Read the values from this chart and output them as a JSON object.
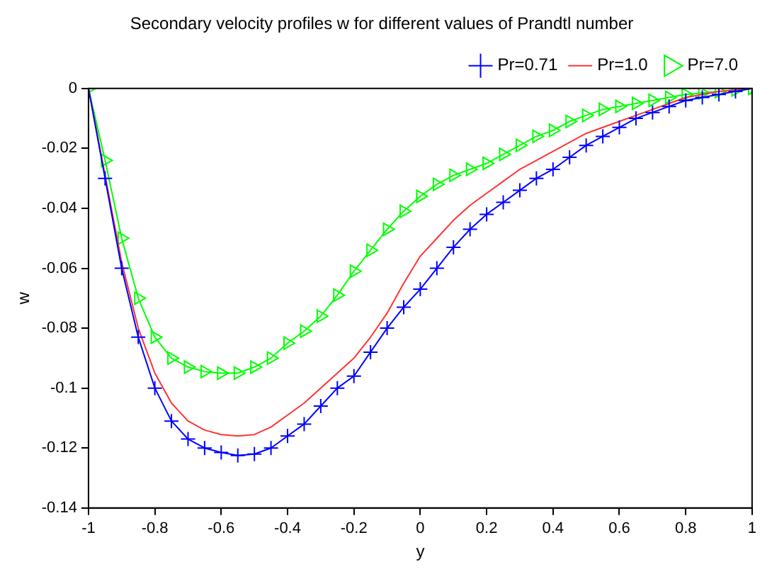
{
  "chart_data": {
    "type": "line",
    "title": "Secondary velocity profiles w for different values of Prandtl number",
    "xlabel": "y",
    "ylabel": "w",
    "x": [
      -1,
      -0.95,
      -0.9,
      -0.85,
      -0.8,
      -0.75,
      -0.7,
      -0.65,
      -0.6,
      -0.55,
      -0.5,
      -0.45,
      -0.4,
      -0.35,
      -0.3,
      -0.25,
      -0.2,
      -0.15,
      -0.1,
      -0.05,
      0,
      0.05,
      0.1,
      0.15,
      0.2,
      0.25,
      0.3,
      0.35,
      0.4,
      0.45,
      0.5,
      0.55,
      0.6,
      0.65,
      0.7,
      0.75,
      0.8,
      0.85,
      0.9,
      0.95,
      1
    ],
    "series": [
      {
        "name": "Pr=0.71",
        "color": "#0000ff",
        "marker": "cross",
        "values": [
          0,
          -0.03,
          -0.06,
          -0.083,
          -0.1,
          -0.111,
          -0.117,
          -0.12,
          -0.1215,
          -0.1225,
          -0.122,
          -0.12,
          -0.116,
          -0.112,
          -0.106,
          -0.1,
          -0.096,
          -0.088,
          -0.08,
          -0.073,
          -0.067,
          -0.06,
          -0.053,
          -0.047,
          -0.042,
          -0.038,
          -0.034,
          -0.03,
          -0.027,
          -0.023,
          -0.019,
          -0.016,
          -0.013,
          -0.01,
          -0.008,
          -0.006,
          -0.004,
          -0.003,
          -0.002,
          -0.001,
          0
        ]
      },
      {
        "name": "Pr=1.0",
        "color": "#ff3333",
        "marker": "none",
        "values": [
          0,
          -0.029,
          -0.058,
          -0.08,
          -0.095,
          -0.105,
          -0.111,
          -0.114,
          -0.1155,
          -0.116,
          -0.1155,
          -0.113,
          -0.109,
          -0.105,
          -0.1,
          -0.095,
          -0.09,
          -0.083,
          -0.075,
          -0.065,
          -0.056,
          -0.05,
          -0.044,
          -0.039,
          -0.035,
          -0.031,
          -0.027,
          -0.024,
          -0.021,
          -0.018,
          -0.015,
          -0.013,
          -0.011,
          -0.009,
          -0.007,
          -0.005,
          -0.003,
          -0.002,
          -0.001,
          -0.0005,
          0
        ]
      },
      {
        "name": "Pr=7.0",
        "color": "#00ff00",
        "marker": "triangle",
        "values": [
          0,
          -0.024,
          -0.05,
          -0.07,
          -0.083,
          -0.09,
          -0.093,
          -0.0945,
          -0.095,
          -0.095,
          -0.093,
          -0.09,
          -0.085,
          -0.081,
          -0.076,
          -0.069,
          -0.061,
          -0.054,
          -0.047,
          -0.041,
          -0.036,
          -0.032,
          -0.029,
          -0.027,
          -0.025,
          -0.022,
          -0.019,
          -0.016,
          -0.014,
          -0.011,
          -0.009,
          -0.007,
          -0.006,
          -0.005,
          -0.004,
          -0.003,
          -0.002,
          -0.0015,
          -0.001,
          -0.0005,
          0
        ]
      }
    ],
    "xlim": [
      -1,
      1
    ],
    "xticks": [
      -1,
      -0.8,
      -0.6,
      -0.4,
      -0.2,
      0,
      0.2,
      0.4,
      0.6,
      0.8,
      1
    ],
    "ylim": [
      -0.14,
      0
    ],
    "yticks": [
      -0.14,
      -0.12,
      -0.1,
      -0.08,
      -0.06,
      -0.04,
      -0.02,
      0
    ],
    "grid": false,
    "legend": "top right",
    "line_style": "solid"
  }
}
